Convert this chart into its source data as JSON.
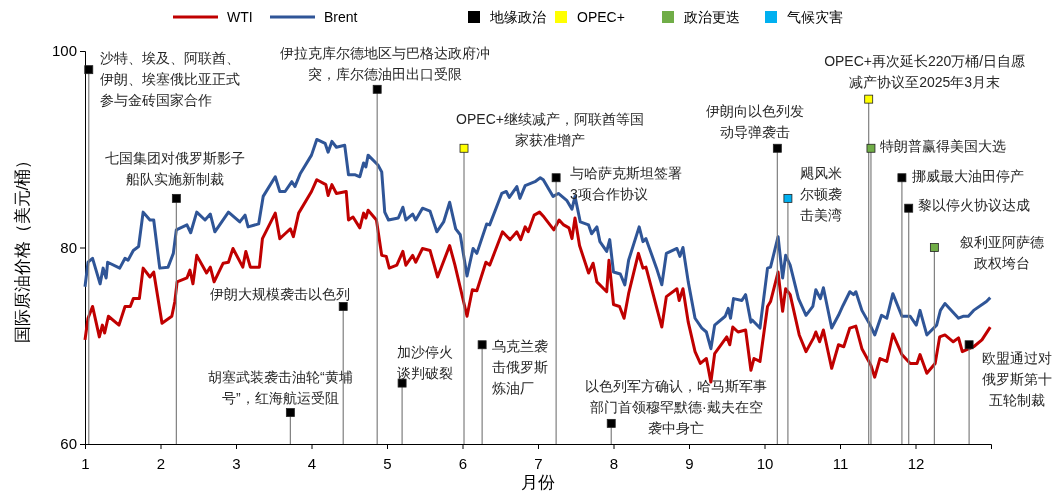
{
  "chart_data": {
    "type": "line",
    "xlabel": "月份",
    "ylabel": "国际原油价格（美元/桶）",
    "xlim": [
      1,
      13
    ],
    "xticks": [
      1,
      2,
      3,
      4,
      5,
      6,
      7,
      8,
      9,
      10,
      11,
      12
    ],
    "ylim": [
      60,
      100
    ],
    "yticks": [
      60,
      80,
      100
    ],
    "legend": "top",
    "series": [
      {
        "name": "WTI",
        "color": "#c00000",
        "x": [
          1.0,
          1.04,
          1.1,
          1.19,
          1.23,
          1.26,
          1.31,
          1.45,
          1.53,
          1.6,
          1.64,
          1.72,
          1.77,
          1.86,
          1.91,
          2.02,
          2.15,
          2.19,
          2.22,
          2.35,
          2.39,
          2.43,
          2.48,
          2.61,
          2.66,
          2.71,
          2.83,
          2.9,
          2.96,
          3.09,
          3.13,
          3.19,
          3.31,
          3.35,
          3.52,
          3.58,
          3.65,
          3.72,
          3.76,
          3.83,
          4.0,
          4.07,
          4.19,
          4.22,
          4.27,
          4.33,
          4.46,
          4.49,
          4.55,
          4.64,
          4.69,
          4.72,
          4.75,
          4.86,
          4.93,
          4.99,
          5.03,
          5.13,
          5.21,
          5.25,
          5.34,
          5.38,
          5.47,
          5.57,
          5.67,
          5.83,
          5.9,
          6.06,
          6.13,
          6.19,
          6.31,
          6.36,
          6.53,
          6.63,
          6.72,
          6.77,
          6.83,
          6.87,
          6.95,
          7.02,
          7.08,
          7.21,
          7.28,
          7.34,
          7.41,
          7.45,
          7.49,
          7.55,
          7.67,
          7.73,
          7.78,
          7.91,
          7.94,
          8.0,
          8.08,
          8.14,
          8.2,
          8.33,
          8.39,
          8.43,
          8.64,
          8.7,
          8.84,
          8.87,
          8.92,
          8.99,
          9.08,
          9.15,
          9.23,
          9.29,
          9.34,
          9.5,
          9.54,
          9.58,
          9.65,
          9.75,
          9.82,
          9.86,
          9.94,
          10.04,
          10.08,
          10.18,
          10.24,
          10.28,
          10.34,
          10.46,
          10.55,
          10.65,
          10.68,
          10.73,
          10.78,
          10.89,
          10.98,
          11.05,
          11.13,
          11.21,
          11.29,
          11.41,
          11.46,
          11.53,
          11.62,
          11.7,
          11.82,
          11.93,
          12.02,
          12.06,
          12.15,
          12.26,
          12.32,
          12.39,
          12.5,
          12.57,
          12.62,
          12.77,
          12.88,
          12.99
        ],
        "values": [
          70.6,
          72.8,
          74.0,
          70.9,
          72.1,
          71.3,
          73.0,
          72.1,
          74.0,
          74.0,
          74.8,
          74.8,
          77.9,
          77.0,
          77.5,
          72.3,
          73.0,
          74.5,
          76.5,
          76.9,
          77.7,
          76.3,
          79.2,
          77.4,
          78.0,
          76.5,
          78.4,
          78.5,
          79.9,
          78.0,
          79.6,
          78.0,
          78.0,
          80.9,
          83.5,
          80.9,
          81.4,
          81.9,
          81.1,
          83.5,
          85.7,
          86.9,
          86.4,
          85.3,
          86.4,
          85.5,
          85.7,
          82.8,
          83.1,
          82.0,
          83.5,
          83.0,
          83.8,
          82.8,
          79.2,
          79.1,
          77.9,
          78.2,
          79.6,
          78.2,
          79.2,
          78.5,
          79.9,
          79.7,
          77.0,
          80.2,
          78.2,
          73.0,
          75.7,
          75.6,
          78.5,
          78.2,
          81.6,
          80.8,
          81.6,
          80.8,
          82.1,
          81.6,
          83.3,
          83.6,
          83.1,
          81.8,
          82.8,
          82.3,
          82.0,
          80.9,
          83.0,
          80.2,
          77.4,
          78.4,
          76.5,
          75.5,
          78.7,
          74.2,
          74.0,
          72.8,
          75.3,
          79.4,
          77.9,
          78.0,
          71.9,
          75.0,
          75.8,
          74.6,
          75.8,
          72.4,
          69.4,
          68.2,
          68.7,
          66.3,
          69.2,
          70.9,
          70.1,
          71.9,
          71.4,
          71.6,
          67.5,
          68.7,
          68.4,
          74.0,
          74.5,
          77.5,
          73.5,
          75.8,
          75.2,
          71.1,
          69.4,
          70.8,
          71.4,
          70.4,
          71.6,
          67.7,
          70.1,
          69.9,
          71.8,
          72.0,
          69.7,
          68.0,
          66.8,
          68.7,
          68.4,
          71.2,
          69.1,
          68.2,
          68.2,
          69.1,
          67.2,
          68.2,
          70.9,
          71.1,
          70.4,
          70.8,
          69.4,
          69.9,
          70.6,
          71.9
        ]
      },
      {
        "name": "Brent",
        "color": "#2f5597",
        "x": [
          1.0,
          1.04,
          1.1,
          1.2,
          1.24,
          1.28,
          1.3,
          1.46,
          1.53,
          1.57,
          1.64,
          1.71,
          1.77,
          1.86,
          1.91,
          1.99,
          2.1,
          2.17,
          2.21,
          2.35,
          2.4,
          2.48,
          2.59,
          2.66,
          2.72,
          2.9,
          3.05,
          3.12,
          3.16,
          3.3,
          3.36,
          3.52,
          3.58,
          3.65,
          3.74,
          3.78,
          3.85,
          4.0,
          4.07,
          4.18,
          4.22,
          4.27,
          4.33,
          4.44,
          4.49,
          4.58,
          4.64,
          4.69,
          4.72,
          4.75,
          4.88,
          4.93,
          4.97,
          5.02,
          5.15,
          5.21,
          5.25,
          5.34,
          5.38,
          5.47,
          5.57,
          5.66,
          5.75,
          5.83,
          5.91,
          5.97,
          6.06,
          6.14,
          6.19,
          6.32,
          6.36,
          6.52,
          6.58,
          6.62,
          6.72,
          6.76,
          6.83,
          6.96,
          7.03,
          7.07,
          7.2,
          7.27,
          7.38,
          7.45,
          7.49,
          7.56,
          7.67,
          7.71,
          7.78,
          7.82,
          7.91,
          7.95,
          8.0,
          8.09,
          8.15,
          8.2,
          8.34,
          8.39,
          8.43,
          8.57,
          8.64,
          8.7,
          8.84,
          8.88,
          8.92,
          8.99,
          9.08,
          9.17,
          9.23,
          9.29,
          9.34,
          9.48,
          9.52,
          9.55,
          9.59,
          9.7,
          9.75,
          9.82,
          9.84,
          9.94,
          10.04,
          10.08,
          10.18,
          10.24,
          10.28,
          10.34,
          10.45,
          10.55,
          10.64,
          10.68,
          10.74,
          10.78,
          10.89,
          10.98,
          11.04,
          11.13,
          11.18,
          11.21,
          11.29,
          11.4,
          11.46,
          11.55,
          11.62,
          11.7,
          11.82,
          11.93,
          12.01,
          12.06,
          12.15,
          12.28,
          12.33,
          12.39,
          12.57,
          12.63,
          12.7,
          12.77,
          12.94,
          12.99
        ],
        "values": [
          76.0,
          78.5,
          78.9,
          76.3,
          77.9,
          76.9,
          78.5,
          77.9,
          78.9,
          78.7,
          79.7,
          80.1,
          83.6,
          82.8,
          82.8,
          77.9,
          78.0,
          79.4,
          81.8,
          82.3,
          81.5,
          83.6,
          82.8,
          83.4,
          81.6,
          83.6,
          82.6,
          83.3,
          82.1,
          82.4,
          85.2,
          87.2,
          85.7,
          85.7,
          86.7,
          86.2,
          87.5,
          89.4,
          91.0,
          90.6,
          89.7,
          90.8,
          90.2,
          90.4,
          87.4,
          87.4,
          87.2,
          88.6,
          88.2,
          89.4,
          88.4,
          87.7,
          83.6,
          82.8,
          83.0,
          84.1,
          82.8,
          83.4,
          82.8,
          84.0,
          83.7,
          81.6,
          82.6,
          84.6,
          81.9,
          81.3,
          77.1,
          79.9,
          79.4,
          82.4,
          82.3,
          85.5,
          85.7,
          85.1,
          86.2,
          85.0,
          86.3,
          86.7,
          87.1,
          86.9,
          85.2,
          85.5,
          84.8,
          83.9,
          85.2,
          82.6,
          82.3,
          81.4,
          82.1,
          80.6,
          79.6,
          80.8,
          77.5,
          77.3,
          76.2,
          78.7,
          82.1,
          80.6,
          80.9,
          77.9,
          76.2,
          79.4,
          79.9,
          79.1,
          80.0,
          76.5,
          72.8,
          71.8,
          71.4,
          69.7,
          72.1,
          73.0,
          73.8,
          72.8,
          74.8,
          74.6,
          75.2,
          72.4,
          72.6,
          71.8,
          77.9,
          78.0,
          81.1,
          76.9,
          79.2,
          78.2,
          74.8,
          73.1,
          74.0,
          75.7,
          74.8,
          75.9,
          71.8,
          73.1,
          74.1,
          75.5,
          75.2,
          75.5,
          73.6,
          72.1,
          71.1,
          73.1,
          72.8,
          75.3,
          73.0,
          73.0,
          72.1,
          73.6,
          71.1,
          72.1,
          73.6,
          74.3,
          72.8,
          73.0,
          73.0,
          73.6,
          74.5,
          74.9
        ]
      },
      {
        "type": "lollipop",
        "name": "地缘政治",
        "color": "#000000",
        "marker": "square",
        "x": [
          1.05,
          2.21,
          3.72,
          4.42,
          4.87,
          5.2,
          6.26,
          7.24,
          7.97,
          10.17,
          11.82,
          11.91,
          12.71
        ],
        "values": [
          98.1,
          85.0,
          63.2,
          74.0,
          96.1,
          66.2,
          70.1,
          87.1,
          62.1,
          90.1,
          87.1,
          84.0,
          70.1
        ]
      },
      {
        "type": "lollipop",
        "name": "OPEC+",
        "color": "#ffff00",
        "marker": "square",
        "x": [
          6.02,
          11.38
        ],
        "values": [
          90.1,
          95.1
        ]
      },
      {
        "type": "lollipop",
        "name": "政治更迭",
        "color": "#70ad47",
        "marker": "square",
        "x": [
          11.41,
          12.25
        ],
        "values": [
          90.1,
          80.0
        ]
      },
      {
        "type": "lollipop",
        "name": "气候灾害",
        "color": "#00b0f0",
        "marker": "square",
        "x": [
          10.31
        ],
        "values": [
          85.0
        ]
      }
    ],
    "annotations": [
      {
        "text": "沙特、埃及、阿联酋、伊朗、埃塞俄比亚正式参与金砖国家合作",
        "x": 1.05,
        "y": 98.1
      },
      {
        "text": "七国集团对俄罗斯影子船队实施新制裁",
        "x": 2.21,
        "y": 85.0
      },
      {
        "text": "伊朗大规模袭击以色列",
        "x": 4.42,
        "y": 74.0
      },
      {
        "text": "胡塞武装袭击油轮“黄埔号”，红海航运受阻",
        "x": 3.72,
        "y": 63.2
      },
      {
        "text": "伊拉克库尔德地区与巴格达政府冲突，库尔德油田出口受限",
        "x": 4.87,
        "y": 96.1
      },
      {
        "text": "加沙停火谈判破裂",
        "x": 5.2,
        "y": 66.2
      },
      {
        "text": "OPEC+继续减产，阿联酋等国家获准增产",
        "x": 6.02,
        "y": 90.1
      },
      {
        "text": "乌克兰袭击俄罗斯炼油厂",
        "x": 6.26,
        "y": 70.1
      },
      {
        "text": "与哈萨克斯坦签署3项合作协议",
        "x": 7.24,
        "y": 87.1
      },
      {
        "text": "以色列军方确认，哈马斯军事部门首领穆罕默德·戴夫在空袭中身亡",
        "x": 7.97,
        "y": 62.1
      },
      {
        "text": "伊朗向以色列发动导弹袭击",
        "x": 10.17,
        "y": 90.1
      },
      {
        "text": "飓风米尔顿袭击美湾",
        "x": 10.31,
        "y": 85.0
      },
      {
        "text": "OPEC+再次延长220万桶/日自愿减产协议至2025年3月末",
        "x": 11.38,
        "y": 95.1
      },
      {
        "text": "特朗普赢得美国大选",
        "x": 11.41,
        "y": 90.1
      },
      {
        "text": "挪威最大油田停产",
        "x": 11.82,
        "y": 87.1
      },
      {
        "text": "黎以停火协议达成",
        "x": 11.91,
        "y": 84.0
      },
      {
        "text": "叙利亚阿萨德政权垮台",
        "x": 12.25,
        "y": 80.0
      },
      {
        "text": "欧盟通过对俄罗斯第十五轮制裁",
        "x": 12.71,
        "y": 70.1
      }
    ]
  }
}
